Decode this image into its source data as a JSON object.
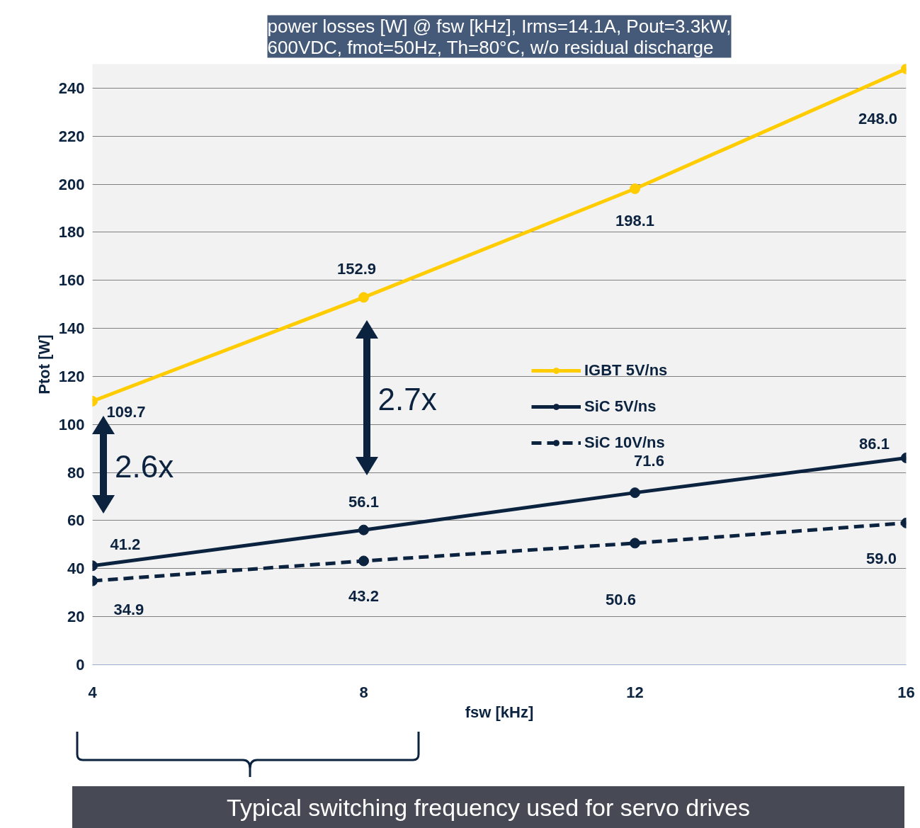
{
  "chart_data": {
    "type": "line",
    "title": "power losses [W] @ fsw [kHz], Irms=14.1A, Pout=3.3kW,\n600VDC, fmot=50Hz, Th=80°C, w/o residual discharge",
    "xlabel": "fsw [kHz]",
    "ylabel": "Ptot [W]",
    "x": [
      4,
      8,
      12,
      16
    ],
    "series": [
      {
        "name": "IGBT 5V/ns",
        "color": "#ffcc00",
        "values": [
          109.7,
          152.9,
          198.1,
          248.0
        ],
        "value_labels": [
          "109.7",
          "152.9",
          "198.1",
          "248.0"
        ]
      },
      {
        "name": "SiC 5V/ns",
        "color": "#0c2340",
        "values": [
          41.2,
          56.1,
          71.6,
          86.1
        ],
        "value_labels": [
          "41.2",
          "56.1",
          "71.6",
          "86.1"
        ]
      },
      {
        "name": "SiC 10V/ns",
        "color": "#0c2340",
        "values": [
          34.9,
          43.2,
          50.6,
          59.0
        ],
        "line_style": "dashed",
        "value_labels": [
          "34.9",
          "43.2",
          "50.6",
          "59.0"
        ]
      }
    ],
    "xlim": [
      4,
      16
    ],
    "xticks": [
      4,
      8,
      12,
      16
    ],
    "ylim": [
      0,
      250
    ],
    "yticks": [
      0,
      20,
      40,
      60,
      80,
      100,
      120,
      140,
      160,
      180,
      200,
      220,
      240
    ],
    "grid": "y",
    "legend": "center",
    "marker": "circle",
    "line_style": "solid",
    "annotations": [
      "2.6x",
      "2.7x",
      "Typical switching frequency used for servo drives"
    ]
  }
}
